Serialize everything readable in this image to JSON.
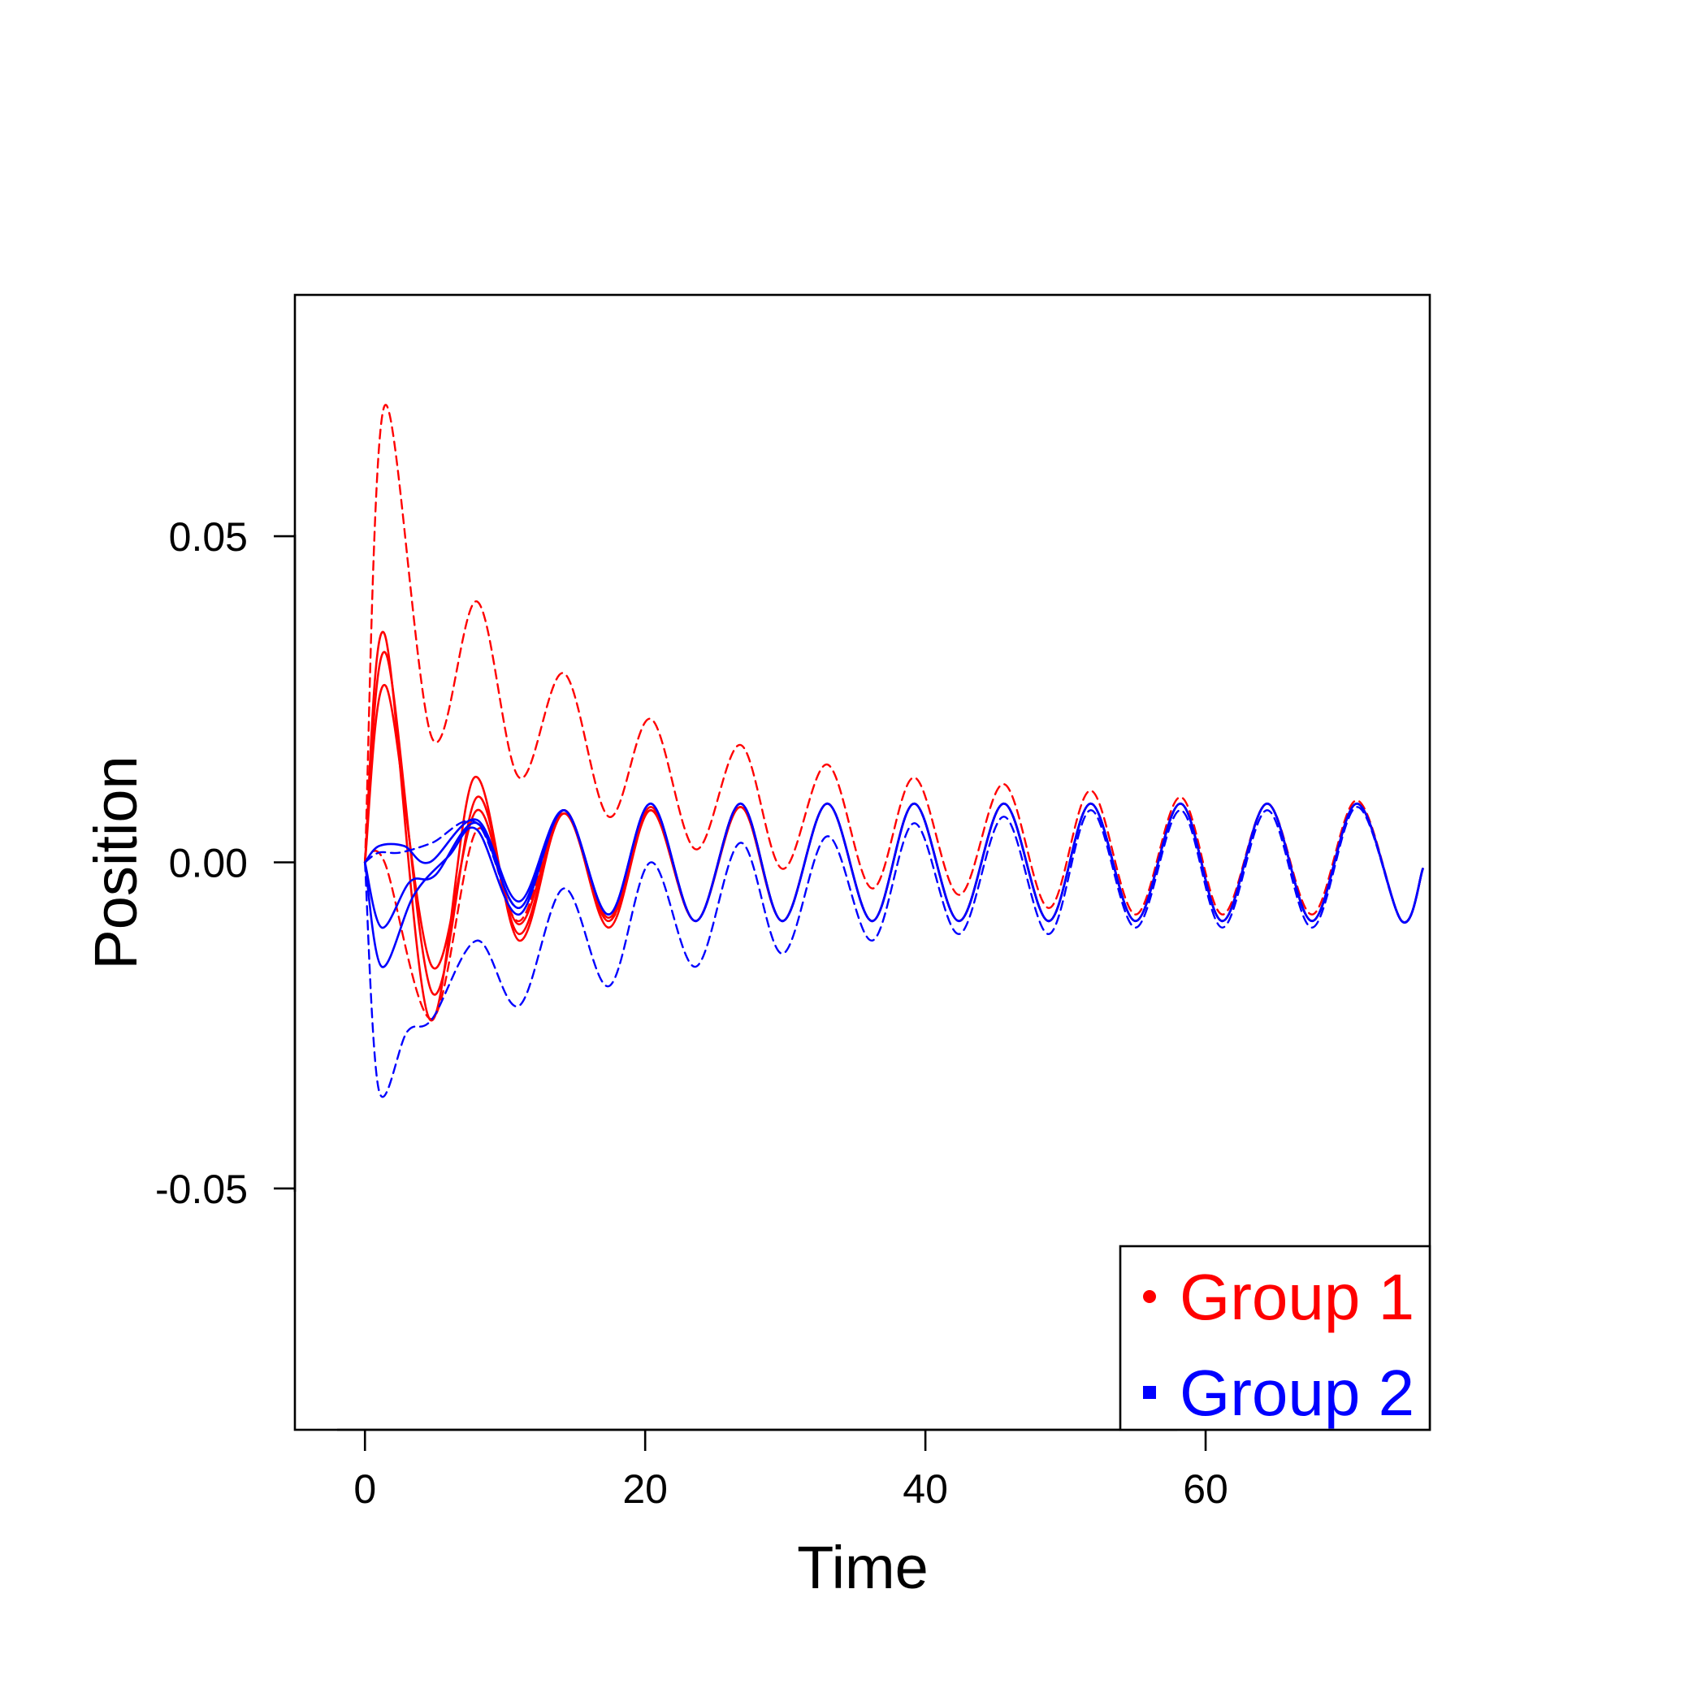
{
  "chart_data": {
    "type": "line",
    "title": "",
    "xlabel": "Time",
    "ylabel": "Position",
    "xlim": [
      -5,
      76
    ],
    "ylim": [
      -0.087,
      0.087
    ],
    "x_ticks": [
      0,
      20,
      40,
      60
    ],
    "x_tick_labels": [
      "0",
      "20",
      "40",
      "60"
    ],
    "y_ticks": [
      -0.05,
      0.0,
      0.05
    ],
    "y_tick_labels": [
      "-0.05",
      "0.00",
      "0.05"
    ],
    "grid": false,
    "legend": {
      "position": "bottom-right",
      "entries": [
        {
          "label": "Group 1",
          "color": "#ff0000",
          "marker": "circle"
        },
        {
          "label": "Group 2",
          "color": "#0000ff",
          "marker": "square"
        }
      ]
    },
    "series": [
      {
        "group": "Group 1",
        "color": "#ff0000",
        "style": "dashed",
        "role": "upper",
        "points": [
          [
            0,
            0.0
          ],
          [
            1.4,
            0.07
          ],
          [
            4.8,
            0.019
          ],
          [
            8.0,
            0.04
          ],
          [
            11.0,
            0.013
          ],
          [
            14.2,
            0.029
          ],
          [
            17.4,
            0.007
          ],
          [
            20.4,
            0.022
          ],
          [
            23.6,
            0.002
          ],
          [
            26.8,
            0.018
          ],
          [
            29.8,
            -0.001
          ],
          [
            33.0,
            0.015
          ],
          [
            36.2,
            -0.004
          ],
          [
            39.2,
            0.013
          ],
          [
            42.4,
            -0.005
          ],
          [
            45.6,
            0.012
          ],
          [
            48.8,
            -0.007
          ],
          [
            51.8,
            0.011
          ],
          [
            55.0,
            -0.008
          ],
          [
            58.2,
            0.01
          ],
          [
            61.2,
            -0.008
          ],
          [
            64.4,
            0.009
          ],
          [
            67.6,
            -0.008
          ],
          [
            70.8,
            0.0095
          ],
          [
            74.0,
            -0.009
          ],
          [
            75.5,
            -0.001
          ]
        ]
      },
      {
        "group": "Group 1",
        "color": "#ff0000",
        "style": "solid",
        "role": "trajectory",
        "points": [
          [
            0,
            0.0
          ],
          [
            1.4,
            0.035
          ],
          [
            4.6,
            -0.024
          ],
          [
            7.8,
            0.013
          ],
          [
            11.0,
            -0.012
          ],
          [
            14.2,
            0.008
          ],
          [
            17.4,
            -0.01
          ],
          [
            20.4,
            0.008
          ],
          [
            23.6,
            -0.009
          ],
          [
            26.8,
            0.0085
          ],
          [
            29.8,
            -0.009
          ],
          [
            33.0,
            0.009
          ],
          [
            36.2,
            -0.009
          ],
          [
            39.2,
            0.009
          ],
          [
            42.4,
            -0.009
          ],
          [
            45.6,
            0.009
          ],
          [
            48.8,
            -0.009
          ],
          [
            51.8,
            0.009
          ],
          [
            55.0,
            -0.009
          ],
          [
            58.2,
            0.009
          ],
          [
            61.2,
            -0.009
          ],
          [
            64.4,
            0.009
          ],
          [
            67.6,
            -0.009
          ],
          [
            70.8,
            0.009
          ],
          [
            74.0,
            -0.009
          ],
          [
            75.5,
            -0.001
          ]
        ]
      },
      {
        "group": "Group 1",
        "color": "#ff0000",
        "style": "solid",
        "role": "trajectory",
        "points": [
          [
            0,
            0.0
          ],
          [
            1.5,
            0.032
          ],
          [
            4.8,
            -0.02
          ],
          [
            8.0,
            0.01
          ],
          [
            11.0,
            -0.011
          ],
          [
            14.2,
            0.0075
          ],
          [
            17.4,
            -0.009
          ],
          [
            20.4,
            0.0085
          ],
          [
            23.6,
            -0.009
          ],
          [
            26.8,
            0.009
          ],
          [
            29.8,
            -0.009
          ],
          [
            33.0,
            0.009
          ],
          [
            36.2,
            -0.009
          ],
          [
            39.2,
            0.009
          ],
          [
            42.4,
            -0.009
          ],
          [
            45.6,
            0.009
          ],
          [
            48.8,
            -0.009
          ],
          [
            51.8,
            0.009
          ],
          [
            55.0,
            -0.009
          ],
          [
            58.2,
            0.009
          ],
          [
            61.2,
            -0.009
          ],
          [
            64.4,
            0.009
          ],
          [
            67.6,
            -0.009
          ],
          [
            70.8,
            0.009
          ],
          [
            74.0,
            -0.009
          ],
          [
            75.5,
            -0.001
          ]
        ]
      },
      {
        "group": "Group 1",
        "color": "#ff0000",
        "style": "solid",
        "role": "trajectory",
        "points": [
          [
            0,
            0.0
          ],
          [
            1.5,
            0.027
          ],
          [
            4.8,
            -0.016
          ],
          [
            8.0,
            0.008
          ],
          [
            11.0,
            -0.0095
          ],
          [
            14.2,
            0.0075
          ],
          [
            17.4,
            -0.0085
          ],
          [
            20.4,
            0.008
          ],
          [
            23.6,
            -0.009
          ],
          [
            26.8,
            0.0085
          ],
          [
            29.8,
            -0.009
          ],
          [
            33.0,
            0.009
          ],
          [
            36.2,
            -0.009
          ],
          [
            39.2,
            0.009
          ],
          [
            42.4,
            -0.009
          ],
          [
            45.6,
            0.009
          ],
          [
            48.8,
            -0.009
          ],
          [
            51.8,
            0.009
          ],
          [
            55.0,
            -0.009
          ],
          [
            58.2,
            0.009
          ],
          [
            61.2,
            -0.009
          ],
          [
            64.4,
            0.009
          ],
          [
            67.6,
            -0.009
          ],
          [
            70.8,
            0.009
          ],
          [
            74.0,
            -0.009
          ],
          [
            75.5,
            -0.001
          ]
        ]
      },
      {
        "group": "Group 1",
        "color": "#ff0000",
        "style": "dashed",
        "role": "lower",
        "points": [
          [
            0,
            0.0
          ],
          [
            1.4,
            0.0
          ],
          [
            4.8,
            -0.024
          ],
          [
            8.0,
            0.005
          ],
          [
            11.0,
            -0.009
          ],
          [
            14.2,
            0.008
          ],
          [
            17.4,
            -0.009
          ],
          [
            20.4,
            0.008
          ],
          [
            23.6,
            -0.009
          ],
          [
            26.8,
            0.009
          ],
          [
            29.8,
            -0.009
          ],
          [
            33.0,
            0.009
          ],
          [
            36.2,
            -0.009
          ],
          [
            39.2,
            0.009
          ],
          [
            42.4,
            -0.009
          ],
          [
            45.6,
            0.009
          ],
          [
            48.8,
            -0.009
          ],
          [
            51.8,
            0.009
          ],
          [
            55.0,
            -0.009
          ],
          [
            58.2,
            0.009
          ],
          [
            61.2,
            -0.009
          ],
          [
            64.4,
            0.009
          ],
          [
            67.6,
            -0.009
          ],
          [
            70.8,
            0.009
          ],
          [
            74.0,
            -0.009
          ],
          [
            75.5,
            -0.001
          ]
        ]
      },
      {
        "group": "Group 2",
        "color": "#0000ff",
        "style": "dashed",
        "role": "upper",
        "points": [
          [
            0,
            0.0
          ],
          [
            1.0,
            0.0015
          ],
          [
            2.5,
            0.0015
          ],
          [
            4.8,
            0.003
          ],
          [
            8.0,
            0.006
          ],
          [
            11.0,
            -0.007
          ],
          [
            14.2,
            0.008
          ],
          [
            17.4,
            -0.008
          ],
          [
            20.4,
            0.009
          ],
          [
            23.6,
            -0.009
          ],
          [
            26.8,
            0.009
          ],
          [
            29.8,
            -0.009
          ],
          [
            33.0,
            0.009
          ],
          [
            36.2,
            -0.009
          ],
          [
            39.2,
            0.009
          ],
          [
            42.4,
            -0.009
          ],
          [
            45.6,
            0.009
          ],
          [
            48.8,
            -0.009
          ],
          [
            51.8,
            0.009
          ],
          [
            55.0,
            -0.009
          ],
          [
            58.2,
            0.009
          ],
          [
            61.2,
            -0.009
          ],
          [
            64.4,
            0.009
          ],
          [
            67.6,
            -0.009
          ],
          [
            70.8,
            0.009
          ],
          [
            74.0,
            -0.009
          ],
          [
            75.5,
            -0.001
          ]
        ]
      },
      {
        "group": "Group 2",
        "color": "#0000ff",
        "style": "solid",
        "role": "trajectory",
        "points": [
          [
            0,
            0.0
          ],
          [
            1.0,
            0.0025
          ],
          [
            2.8,
            0.0025
          ],
          [
            4.6,
            0.0
          ],
          [
            8.0,
            0.0065
          ],
          [
            11.0,
            -0.006
          ],
          [
            14.2,
            0.008
          ],
          [
            17.4,
            -0.008
          ],
          [
            20.4,
            0.009
          ],
          [
            23.6,
            -0.009
          ],
          [
            26.8,
            0.009
          ],
          [
            29.8,
            -0.009
          ],
          [
            33.0,
            0.009
          ],
          [
            36.2,
            -0.009
          ],
          [
            39.2,
            0.009
          ],
          [
            42.4,
            -0.009
          ],
          [
            45.6,
            0.009
          ],
          [
            48.8,
            -0.009
          ],
          [
            51.8,
            0.009
          ],
          [
            55.0,
            -0.009
          ],
          [
            58.2,
            0.009
          ],
          [
            61.2,
            -0.009
          ],
          [
            64.4,
            0.009
          ],
          [
            67.6,
            -0.009
          ],
          [
            70.8,
            0.009
          ],
          [
            74.0,
            -0.009
          ],
          [
            75.5,
            -0.001
          ]
        ]
      },
      {
        "group": "Group 2",
        "color": "#0000ff",
        "style": "solid",
        "role": "trajectory",
        "points": [
          [
            0,
            0.0
          ],
          [
            1.2,
            -0.01
          ],
          [
            3.2,
            -0.003
          ],
          [
            5.0,
            -0.002
          ],
          [
            8.0,
            0.006
          ],
          [
            11.0,
            -0.007
          ],
          [
            14.2,
            0.008
          ],
          [
            17.4,
            -0.008
          ],
          [
            20.4,
            0.009
          ],
          [
            23.6,
            -0.009
          ],
          [
            26.8,
            0.009
          ],
          [
            29.8,
            -0.009
          ],
          [
            33.0,
            0.009
          ],
          [
            36.2,
            -0.009
          ],
          [
            39.2,
            0.009
          ],
          [
            42.4,
            -0.009
          ],
          [
            45.6,
            0.009
          ],
          [
            48.8,
            -0.009
          ],
          [
            51.8,
            0.009
          ],
          [
            55.0,
            -0.009
          ],
          [
            58.2,
            0.009
          ],
          [
            61.2,
            -0.009
          ],
          [
            64.4,
            0.009
          ],
          [
            67.6,
            -0.009
          ],
          [
            70.8,
            0.009
          ],
          [
            74.0,
            -0.009
          ],
          [
            75.5,
            -0.001
          ]
        ]
      },
      {
        "group": "Group 2",
        "color": "#0000ff",
        "style": "solid",
        "role": "trajectory",
        "points": [
          [
            0,
            0.0
          ],
          [
            1.2,
            -0.016
          ],
          [
            3.5,
            -0.005
          ],
          [
            6.0,
            0.001
          ],
          [
            8.0,
            0.005
          ],
          [
            11.0,
            -0.008
          ],
          [
            14.2,
            0.008
          ],
          [
            17.4,
            -0.008
          ],
          [
            20.4,
            0.009
          ],
          [
            23.6,
            -0.009
          ],
          [
            26.8,
            0.009
          ],
          [
            29.8,
            -0.009
          ],
          [
            33.0,
            0.009
          ],
          [
            36.2,
            -0.009
          ],
          [
            39.2,
            0.009
          ],
          [
            42.4,
            -0.009
          ],
          [
            45.6,
            0.009
          ],
          [
            48.8,
            -0.009
          ],
          [
            51.8,
            0.009
          ],
          [
            55.0,
            -0.009
          ],
          [
            58.2,
            0.009
          ],
          [
            61.2,
            -0.009
          ],
          [
            64.4,
            0.009
          ],
          [
            67.6,
            -0.009
          ],
          [
            70.8,
            0.009
          ],
          [
            74.0,
            -0.009
          ],
          [
            75.5,
            -0.001
          ]
        ]
      },
      {
        "group": "Group 2",
        "color": "#0000ff",
        "style": "dashed",
        "role": "lower",
        "points": [
          [
            0,
            0.0
          ],
          [
            1.0,
            -0.035
          ],
          [
            3.0,
            -0.026
          ],
          [
            4.8,
            -0.024
          ],
          [
            8.0,
            -0.012
          ],
          [
            11.0,
            -0.022
          ],
          [
            14.2,
            -0.004
          ],
          [
            17.4,
            -0.019
          ],
          [
            20.4,
            0.0
          ],
          [
            23.6,
            -0.016
          ],
          [
            26.8,
            0.003
          ],
          [
            29.8,
            -0.014
          ],
          [
            33.0,
            0.004
          ],
          [
            36.2,
            -0.012
          ],
          [
            39.2,
            0.006
          ],
          [
            42.4,
            -0.011
          ],
          [
            45.6,
            0.007
          ],
          [
            48.8,
            -0.011
          ],
          [
            51.8,
            0.008
          ],
          [
            55.0,
            -0.01
          ],
          [
            58.2,
            0.008
          ],
          [
            61.2,
            -0.01
          ],
          [
            64.4,
            0.008
          ],
          [
            67.6,
            -0.01
          ],
          [
            70.8,
            0.0085
          ],
          [
            74.0,
            -0.009
          ],
          [
            75.5,
            -0.001
          ]
        ]
      }
    ]
  }
}
